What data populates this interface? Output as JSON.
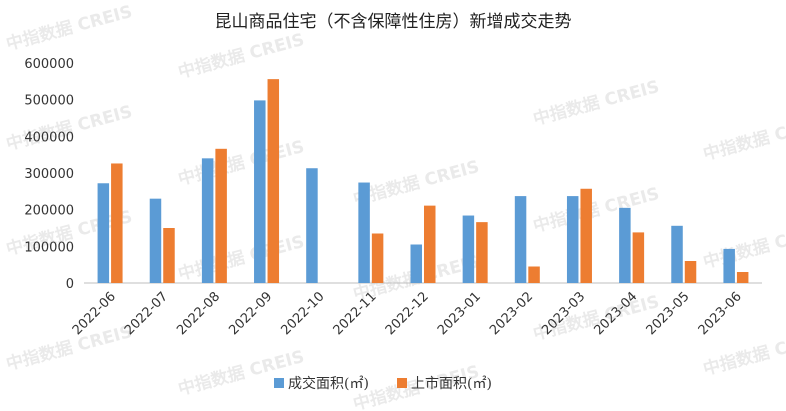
{
  "chart_data": {
    "type": "bar",
    "title": "昆山商品住宅（不含保障性住房）新增成交走势",
    "categories": [
      "2022-06",
      "2022-07",
      "2022-08",
      "2022-09",
      "2022-10",
      "2022-11",
      "2022-12",
      "2023-01",
      "2023-02",
      "2023-03",
      "2023-04",
      "2023-05",
      "2023-06"
    ],
    "series": [
      {
        "name": "成交面积(㎡)",
        "color": "#5b9bd5",
        "values": [
          272000,
          230000,
          340000,
          498000,
          313000,
          274000,
          105000,
          184000,
          237000,
          237000,
          205000,
          156000,
          93000
        ]
      },
      {
        "name": "上市面积(㎡)",
        "color": "#ed7d31",
        "values": [
          326000,
          150000,
          366000,
          556000,
          0,
          135000,
          211000,
          166000,
          45000,
          257000,
          138000,
          60000,
          30000
        ]
      }
    ],
    "ylim": [
      0,
      600000
    ],
    "yticks": [
      "0",
      "100000",
      "200000",
      "300000",
      "400000",
      "500000",
      "600000"
    ],
    "grid": false,
    "legend_position": "bottom"
  },
  "watermark": "中指数据 CREIS"
}
